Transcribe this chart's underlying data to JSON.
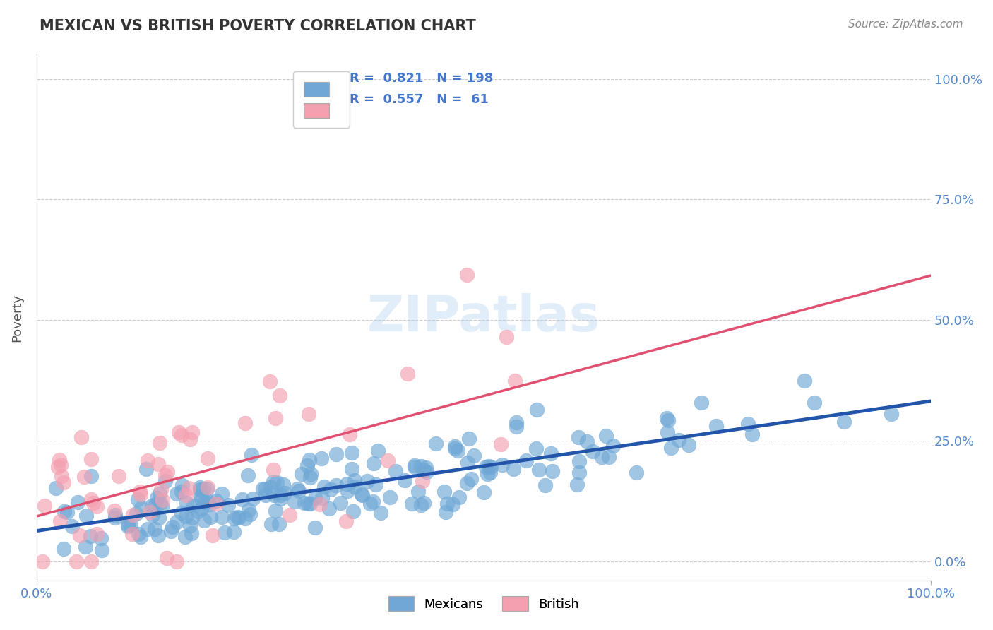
{
  "title": "MEXICAN VS BRITISH POVERTY CORRELATION CHART",
  "source": "Source: ZipAtlas.com",
  "ylabel": "Poverty",
  "xlabel": "",
  "xlim": [
    0.0,
    1.0
  ],
  "ylim": [
    -0.04,
    1.05
  ],
  "yticks": [
    0.0,
    0.25,
    0.5,
    0.75,
    1.0
  ],
  "ytick_labels": [
    "0.0%",
    "25.0%",
    "50.0%",
    "75.0%",
    "100.0%"
  ],
  "xtick_labels": [
    "0.0%",
    "100.0%"
  ],
  "legend_blue_r": "0.821",
  "legend_blue_n": "198",
  "legend_pink_r": "0.557",
  "legend_pink_n": "61",
  "blue_color": "#6fa8d6",
  "pink_color": "#f4a0b0",
  "blue_line_color": "#2255aa",
  "pink_line_color": "#e05070",
  "watermark": "ZIPatlas",
  "background_color": "#ffffff",
  "title_color": "#333333",
  "axis_label_color": "#555555",
  "tick_color": "#5588cc",
  "grid_color": "#cccccc",
  "mexican_seed": 42,
  "british_seed": 123,
  "mexican_n": 198,
  "british_n": 61,
  "mexican_r": 0.821,
  "british_r": 0.557
}
